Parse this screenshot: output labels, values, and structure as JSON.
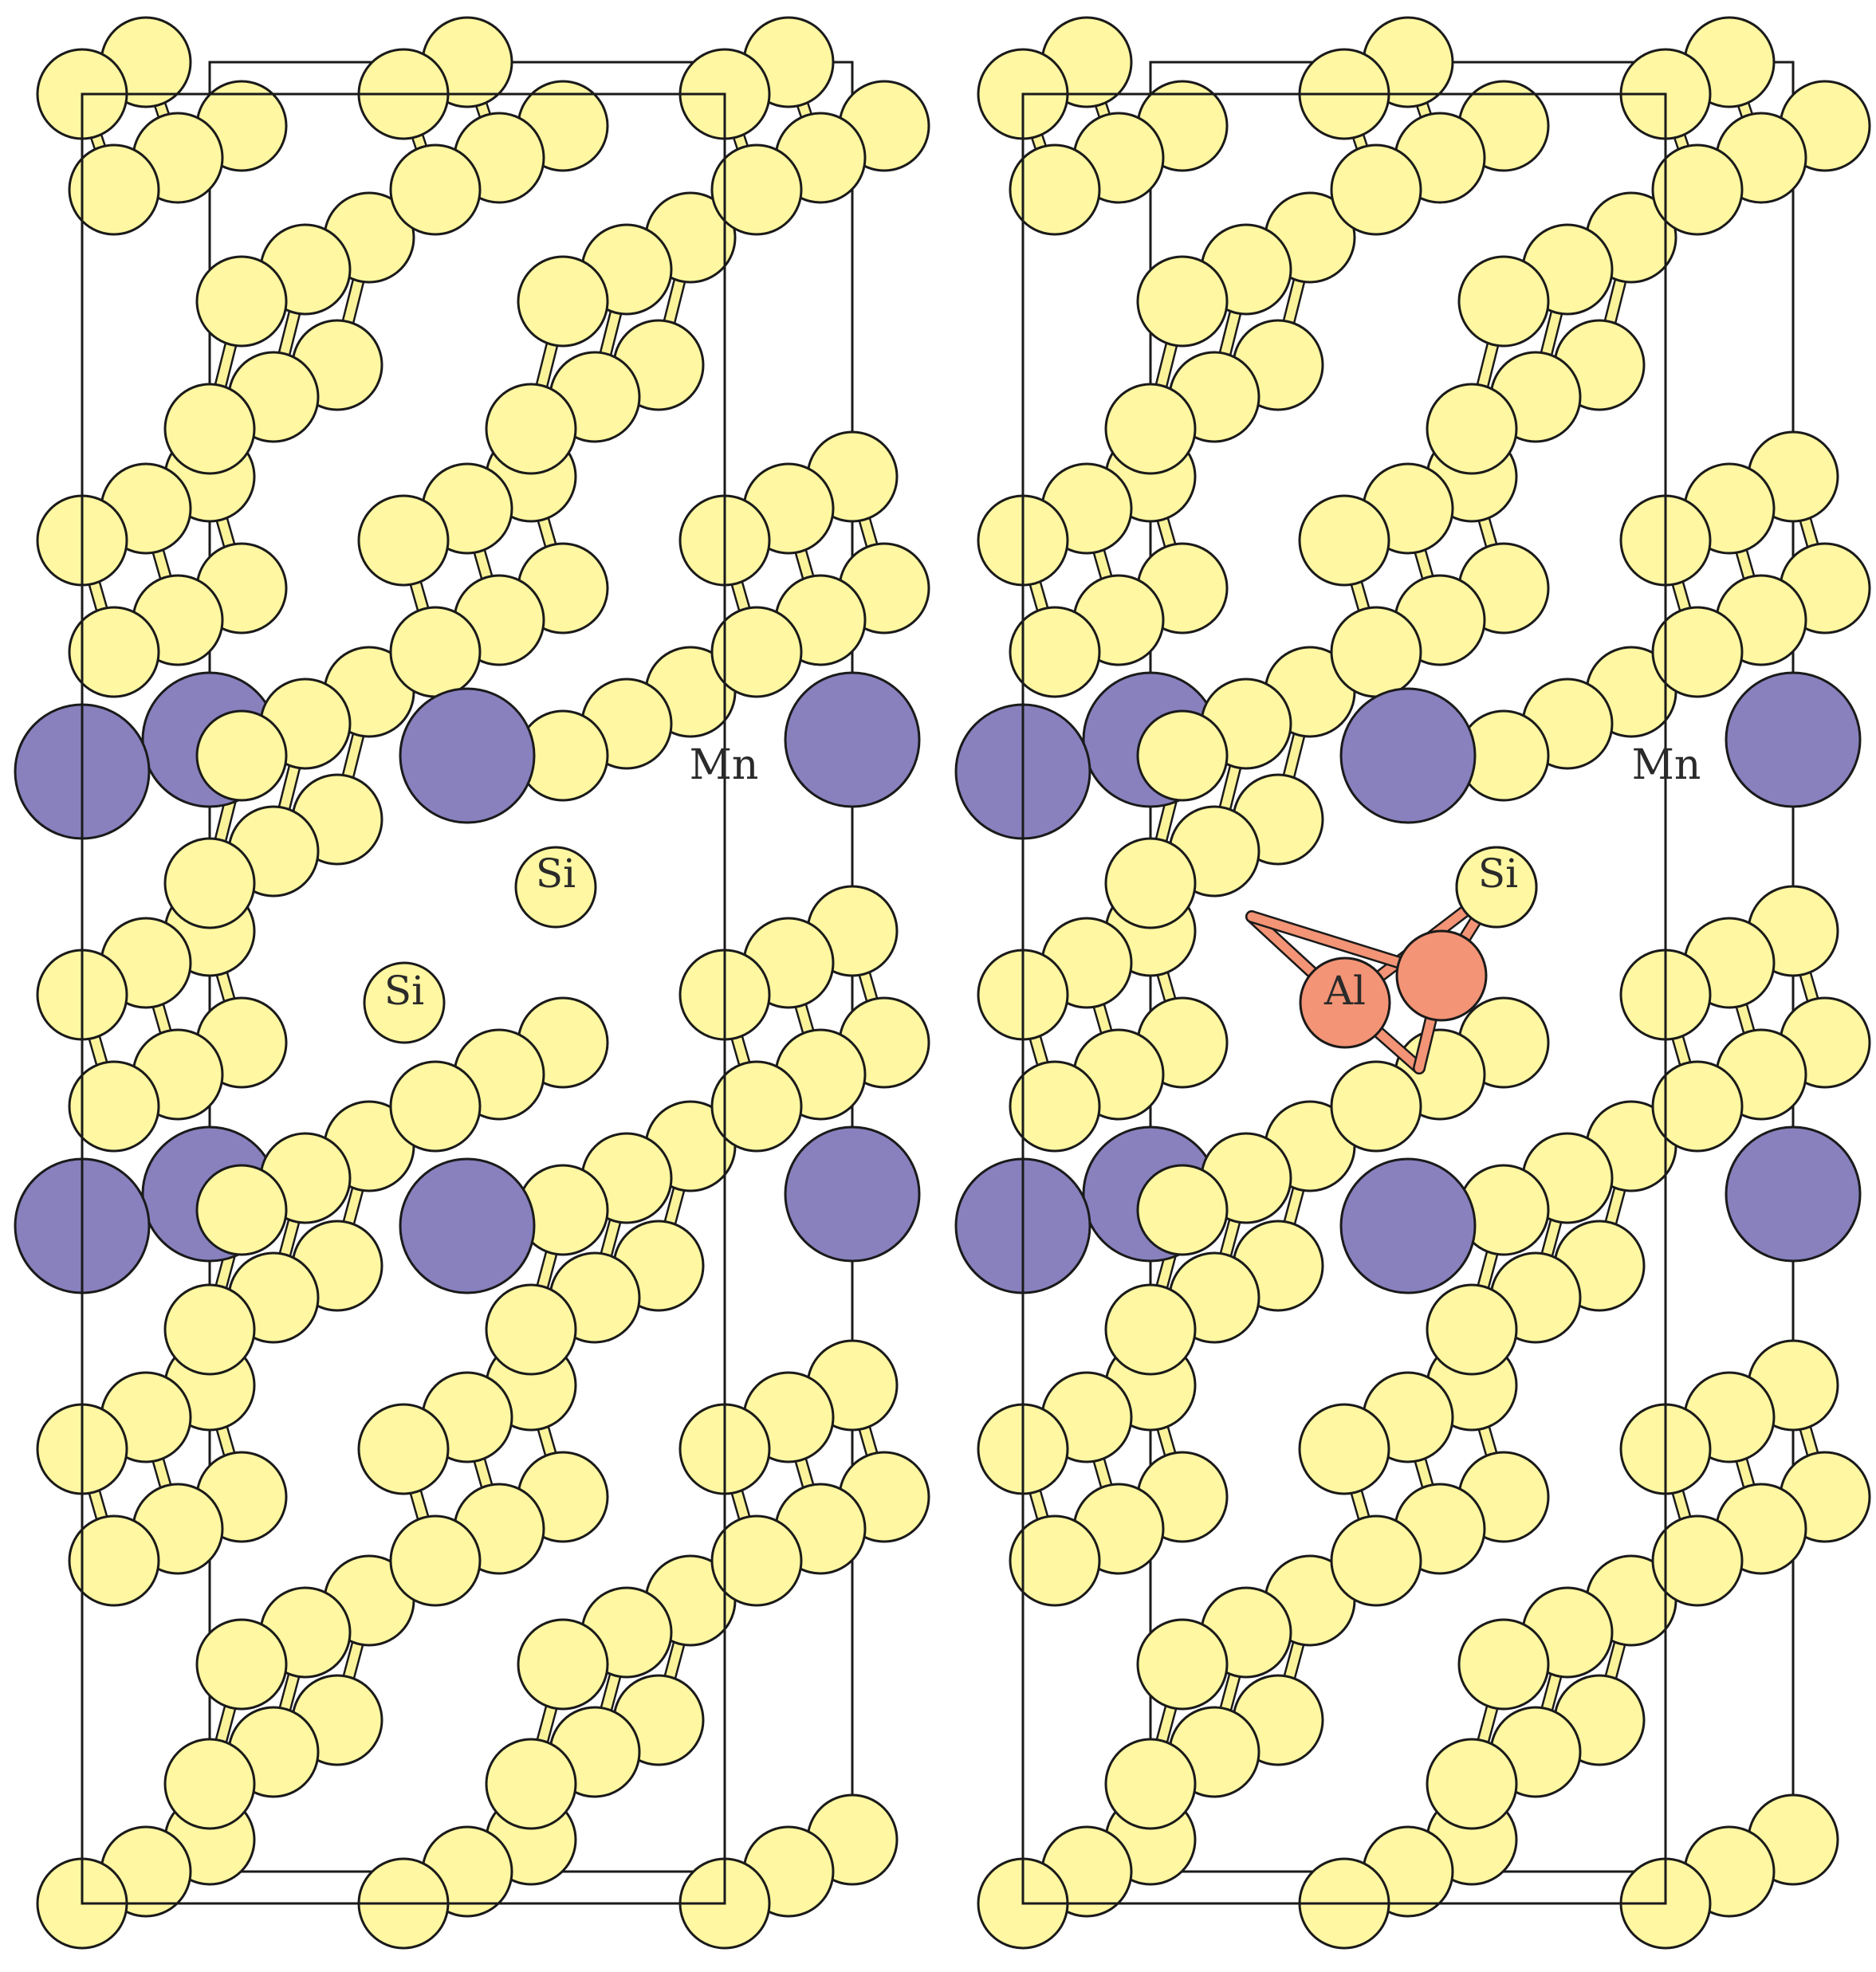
{
  "colors": {
    "si": "#fff7a1",
    "mn": "#8881be",
    "al": "#f39476",
    "outline": "#1a1a1a",
    "bond_si": "#fbf39a",
    "bond_al": "#f39476",
    "background": "#ffffff"
  },
  "panels": [
    {
      "id": "pristine",
      "labels": {
        "mn": "Mn",
        "si_upper": "Si",
        "si_lower": "Si"
      }
    },
    {
      "id": "al-doped",
      "labels": {
        "mn": "Mn",
        "si": "Si",
        "al": "Al"
      }
    }
  ]
}
